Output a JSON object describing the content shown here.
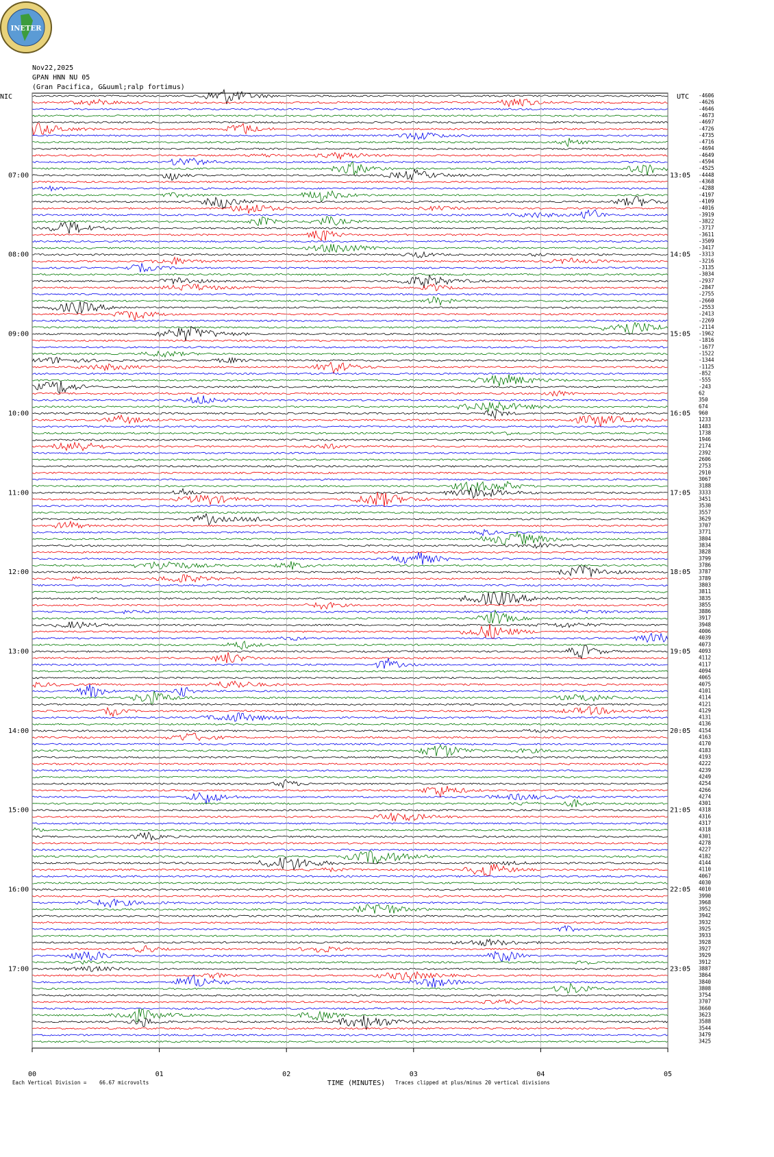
{
  "header": {
    "logo": "INETER",
    "date": "Nov22,2025",
    "station": "GPAN HNN NU 05",
    "location": "(Gran Pacifica, G&uuml;ralp fortimus)",
    "left_zone": "NIC",
    "right_zone": "UTC"
  },
  "left_times": [
    "07:00",
    "08:00",
    "09:00",
    "10:00",
    "11:00",
    "12:00",
    "13:00",
    "14:00",
    "15:00",
    "16:00",
    "17:00"
  ],
  "right_times": [
    "13:05",
    "14:05",
    "15:05",
    "16:05",
    "17:05",
    "18:05",
    "19:05",
    "20:05",
    "21:05",
    "22:05",
    "23:05"
  ],
  "trace_offsets": [
    -4606,
    -4626,
    -4646,
    -4673,
    -4697,
    -4726,
    -4735,
    -4716,
    -4694,
    -4649,
    -4594,
    -4525,
    -4448,
    -4368,
    -4288,
    -4197,
    -4109,
    -4016,
    -3919,
    -3822,
    -3717,
    -3611,
    -3509,
    -3417,
    -3313,
    -3216,
    -3135,
    -3034,
    -2937,
    -2847,
    -2755,
    -2660,
    -2553,
    -2413,
    -2269,
    -2114,
    -1962,
    -1816,
    -1677,
    -1522,
    -1344,
    -1125,
    -852,
    -555,
    -243,
    62,
    350,
    674,
    960,
    1233,
    1483,
    1738,
    1946,
    2174,
    2392,
    2606,
    2753,
    2910,
    3067,
    3188,
    3333,
    3451,
    3530,
    3557,
    3629,
    3707,
    3771,
    3804,
    3834,
    3828,
    3799,
    3786,
    3787,
    3789,
    3803,
    3811,
    3835,
    3855,
    3886,
    3917,
    3948,
    4006,
    4039,
    4073,
    4093,
    4112,
    4117,
    4094,
    4065,
    4075,
    4101,
    4114,
    4121,
    4129,
    4131,
    4136,
    4154,
    4163,
    4170,
    4183,
    4193,
    4222,
    4239,
    4249,
    4254,
    4266,
    4274,
    4301,
    4318,
    4316,
    4317,
    4318,
    4301,
    4278,
    4227,
    4182,
    4144,
    4110,
    4067,
    4030,
    4010,
    3990,
    3968,
    3952,
    3942,
    3932,
    3925,
    3933,
    3928,
    3927,
    3929,
    3912,
    3887,
    3864,
    3840,
    3808,
    3754,
    3707,
    3660,
    3623,
    3588,
    3544,
    3479,
    3425
  ],
  "x_axis": {
    "labels": [
      "00",
      "01",
      "02",
      "03",
      "04",
      "05"
    ],
    "title": "TIME (MINUTES)"
  },
  "footer": {
    "division_label": "Each Vertical Division =",
    "division_value": "66.67 microvolts",
    "clip_note": "Traces clipped at plus/minus 20 vertical divisions"
  }
}
